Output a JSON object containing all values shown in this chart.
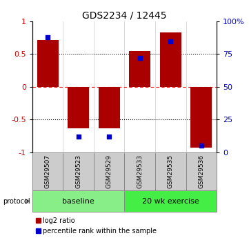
{
  "title": "GDS2234 / 12445",
  "samples": [
    "GSM29507",
    "GSM29523",
    "GSM29529",
    "GSM29533",
    "GSM29535",
    "GSM29536"
  ],
  "log2_ratio": [
    0.72,
    -0.63,
    -0.63,
    0.55,
    0.83,
    -0.93
  ],
  "percentile_rank": [
    88,
    12,
    12,
    72,
    85,
    5
  ],
  "groups": [
    {
      "label": "baseline",
      "indices": [
        0,
        1,
        2
      ],
      "color": "#88ee88"
    },
    {
      "label": "20 wk exercise",
      "indices": [
        3,
        4,
        5
      ],
      "color": "#44ee44"
    }
  ],
  "bar_color": "#aa0000",
  "dot_color": "#0000cc",
  "left_ylim": [
    -1,
    1
  ],
  "right_ylim": [
    0,
    100
  ],
  "left_yticks": [
    -1,
    -0.5,
    0,
    0.5,
    1
  ],
  "right_yticks": [
    0,
    25,
    50,
    75,
    100
  ],
  "right_yticklabels": [
    "0",
    "25",
    "50",
    "75",
    "100%"
  ],
  "protocol_label": "protocol",
  "legend_items": [
    "log2 ratio",
    "percentile rank within the sample"
  ],
  "bar_width": 0.7,
  "sample_box_color": "#cccccc",
  "left_tick_color": "#cc0000",
  "right_tick_color": "#0000cc"
}
